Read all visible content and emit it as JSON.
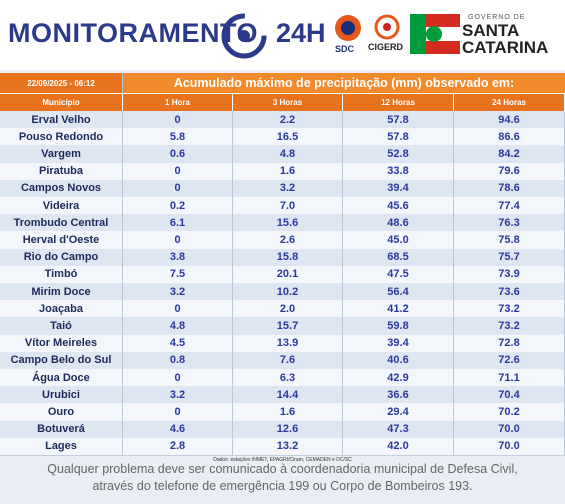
{
  "header": {
    "title": "MONITORAMENTO",
    "title_suffix": "24H",
    "sdc": "SDC",
    "cigerd": "CIGERD",
    "gov": "GOVERNO DE",
    "state_1": "SANTA",
    "state_2": "CATARINA"
  },
  "table": {
    "date": "22/09/2025 - 06:12",
    "title": "Acumulado máximo de precipitação (mm) observado em:",
    "columns": [
      "Município",
      "1 Hora",
      "3 Horas",
      "12 Horas",
      "24 Horas"
    ],
    "rows": [
      [
        "Erval Velho",
        "0",
        "2.2",
        "57.8",
        "94.6"
      ],
      [
        "Pouso Redondo",
        "5.8",
        "16.5",
        "57.8",
        "86.6"
      ],
      [
        "Vargem",
        "0.6",
        "4.8",
        "52.8",
        "84.2"
      ],
      [
        "Piratuba",
        "0",
        "1.6",
        "33.8",
        "79.6"
      ],
      [
        "Campos Novos",
        "0",
        "3.2",
        "39.4",
        "78.6"
      ],
      [
        "Videira",
        "0.2",
        "7.0",
        "45.6",
        "77.4"
      ],
      [
        "Trombudo Central",
        "6.1",
        "15.6",
        "48.6",
        "76.3"
      ],
      [
        "Herval d'Oeste",
        "0",
        "2.6",
        "45.0",
        "75.8"
      ],
      [
        "Rio do Campo",
        "3.8",
        "15.8",
        "68.5",
        "75.7"
      ],
      [
        "Timbó",
        "7.5",
        "20.1",
        "47.5",
        "73.9"
      ],
      [
        "Mirim Doce",
        "3.2",
        "10.2",
        "56.4",
        "73.6"
      ],
      [
        "Joaçaba",
        "0",
        "2.0",
        "41.2",
        "73.2"
      ],
      [
        "Taió",
        "4.8",
        "15.7",
        "59.8",
        "73.2"
      ],
      [
        "Vítor Meireles",
        "4.5",
        "13.9",
        "39.4",
        "72.8"
      ],
      [
        "Campo Belo do Sul",
        "0.8",
        "7.6",
        "40.6",
        "72.6"
      ],
      [
        "Água Doce",
        "0",
        "6.3",
        "42.9",
        "71.1"
      ],
      [
        "Urubici",
        "3.2",
        "14.4",
        "36.6",
        "70.4"
      ],
      [
        "Ouro",
        "0",
        "1.6",
        "29.4",
        "70.2"
      ],
      [
        "Botuverá",
        "4.6",
        "12.6",
        "47.3",
        "70.0"
      ],
      [
        "Lages",
        "2.8",
        "13.2",
        "42.0",
        "70.0"
      ]
    ],
    "source": "Dados: estações INMET, EPAGRI/Ciram, CEMADEN e DC/SC"
  },
  "footer": {
    "line_1": "Qualquer problema deve ser comunicado à coordenadoria municipal de Defesa Civil,",
    "line_2": "através do telefone de emergência 199 ou Corpo de Bombeiros 193."
  }
}
